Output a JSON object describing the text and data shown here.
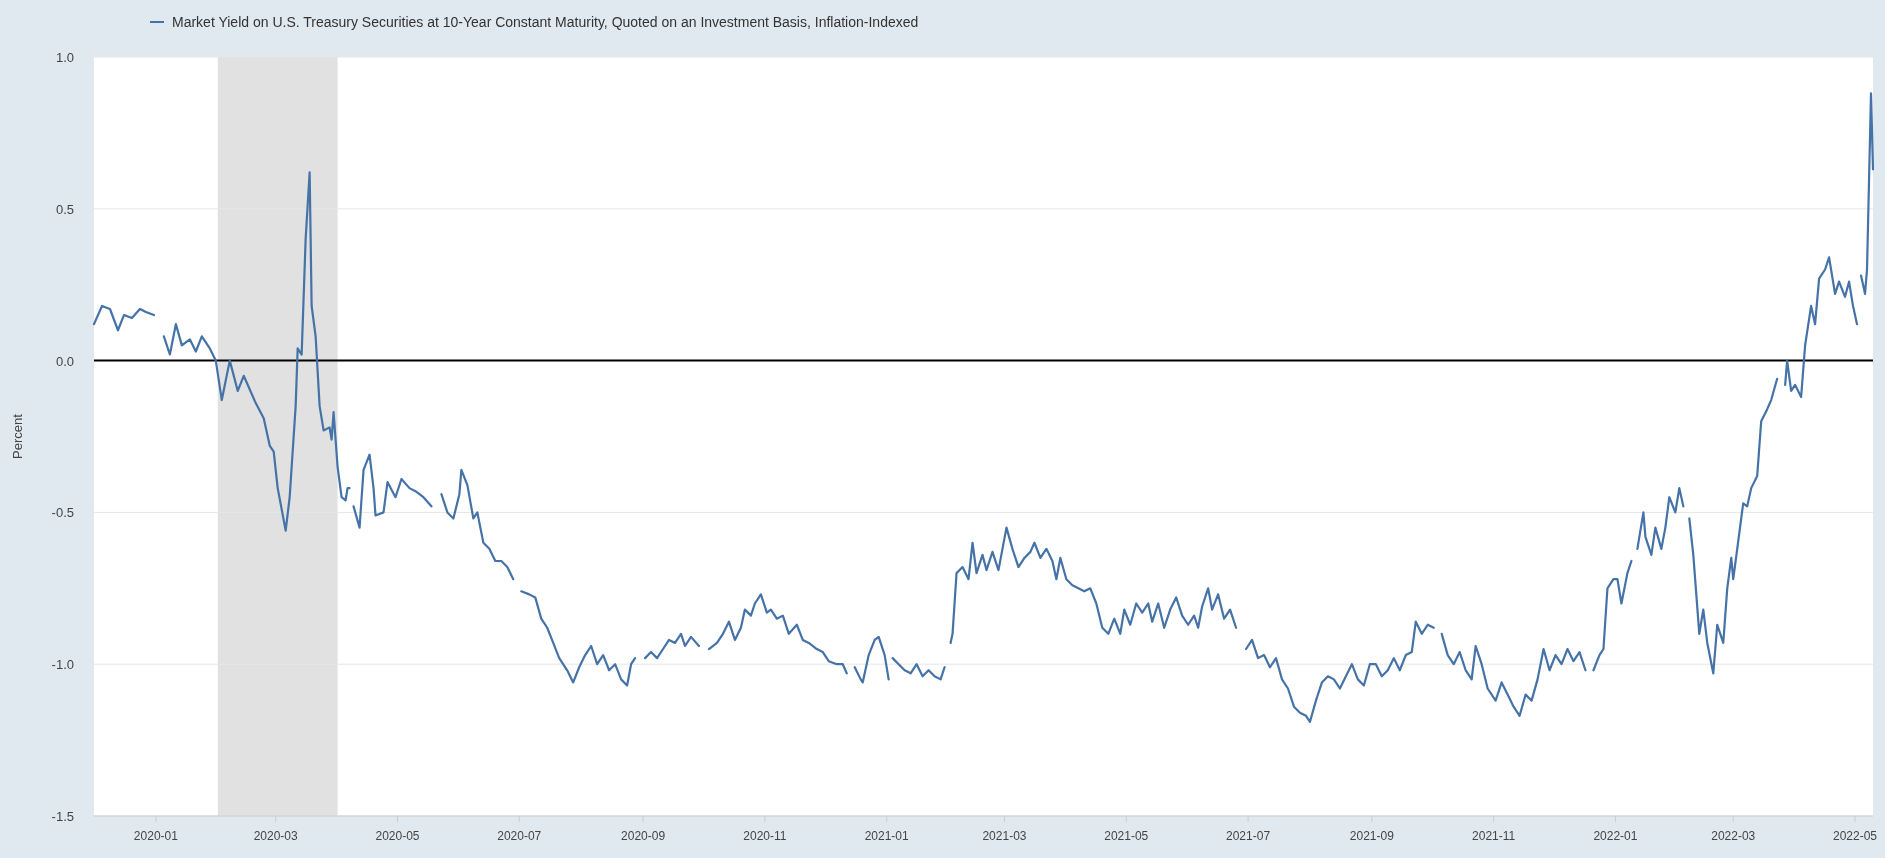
{
  "chart_data": {
    "type": "line",
    "ylabel": "Percent",
    "legend": "top left",
    "grid": "y",
    "marker": "none",
    "line_style": "solid",
    "xlim": [
      "2019-12-01",
      "2022-05-10"
    ],
    "xticks": [
      "2020-01",
      "2020-03",
      "2020-05",
      "2020-07",
      "2020-09",
      "2020-11",
      "2021-01",
      "2021-03",
      "2021-05",
      "2021-07",
      "2021-09",
      "2021-11",
      "2022-01",
      "2022-03",
      "2022-05"
    ],
    "ylim": [
      -1.5,
      1.0
    ],
    "yticks": [
      {
        "value": -1.5,
        "label": "-1.5"
      },
      {
        "value": -1.0,
        "label": "-1.0"
      },
      {
        "value": -0.5,
        "label": "-0.5"
      },
      {
        "value": 0,
        "label": "0.0"
      },
      {
        "value": 0.5,
        "label": "0.5"
      },
      {
        "value": 1.0,
        "label": "1.0"
      }
    ],
    "bands": [
      {
        "axis": "x",
        "from": "2020-02-01",
        "to": "2020-04-01",
        "color": "#e1e1e1"
      }
    ],
    "ref_lines": [
      {
        "axis": "y",
        "value": 0,
        "color": "#000000"
      }
    ],
    "x": [
      "2019-12-01",
      "2019-12-05",
      "2019-12-09",
      "2019-12-13",
      "2019-12-16",
      "2019-12-20",
      "2019-12-24",
      "2019-12-27",
      "2019-12-31",
      "2020-01-02",
      "2020-01-05",
      "2020-01-08",
      "2020-01-11",
      "2020-01-14",
      "2020-01-18",
      "2020-01-21",
      "2020-01-24",
      "2020-01-28",
      "2020-01-31",
      "2020-02-03",
      "2020-02-07",
      "2020-02-11",
      "2020-02-14",
      "2020-02-20",
      "2020-02-24",
      "2020-02-27",
      "2020-02-29",
      "2020-03-02",
      "2020-03-06",
      "2020-03-08",
      "2020-03-11",
      "2020-03-12",
      "2020-03-14",
      "2020-03-16",
      "2020-03-18",
      "2020-03-19",
      "2020-03-21",
      "2020-03-23",
      "2020-03-25",
      "2020-03-28",
      "2020-03-29",
      "2020-03-30",
      "2020-04-01",
      "2020-04-03",
      "2020-04-05",
      "2020-04-06",
      "2020-04-07",
      "2020-04-08",
      "2020-04-09",
      "2020-04-12",
      "2020-04-14",
      "2020-04-17",
      "2020-04-19",
      "2020-04-20",
      "2020-04-24",
      "2020-04-26",
      "2020-04-30",
      "2020-05-03",
      "2020-05-07",
      "2020-05-10",
      "2020-05-14",
      "2020-05-18",
      "2020-05-20",
      "2020-05-23",
      "2020-05-26",
      "2020-05-29",
      "2020-06-01",
      "2020-06-02",
      "2020-06-05",
      "2020-06-08",
      "2020-06-10",
      "2020-06-13",
      "2020-06-16",
      "2020-06-19",
      "2020-06-22",
      "2020-06-25",
      "2020-06-28",
      "2020-06-30",
      "2020-07-02",
      "2020-07-06",
      "2020-07-09",
      "2020-07-12",
      "2020-07-15",
      "2020-07-18",
      "2020-07-21",
      "2020-07-25",
      "2020-07-28",
      "2020-07-31",
      "2020-08-03",
      "2020-08-06",
      "2020-08-09",
      "2020-08-12",
      "2020-08-15",
      "2020-08-18",
      "2020-08-21",
      "2020-08-24",
      "2020-08-26",
      "2020-08-28",
      "2020-08-31",
      "2020-09-02",
      "2020-09-05",
      "2020-09-08",
      "2020-09-11",
      "2020-09-14",
      "2020-09-17",
      "2020-09-20",
      "2020-09-22",
      "2020-09-25",
      "2020-09-29",
      "2020-10-03",
      "2020-10-04",
      "2020-10-08",
      "2020-10-11",
      "2020-10-14",
      "2020-10-17",
      "2020-10-20",
      "2020-10-22",
      "2020-10-25",
      "2020-10-27",
      "2020-10-30",
      "2020-11-02",
      "2020-11-04",
      "2020-11-07",
      "2020-11-10",
      "2020-11-13",
      "2020-11-17",
      "2020-11-20",
      "2020-11-23",
      "2020-11-27",
      "2020-11-30",
      "2020-12-03",
      "2020-12-07",
      "2020-12-10",
      "2020-12-12",
      "2020-12-15",
      "2020-12-16",
      "2020-12-19",
      "2020-12-20",
      "2020-12-23",
      "2020-12-26",
      "2020-12-28",
      "2020-12-31",
      "2021-01-02",
      "2021-01-03",
      "2021-01-04",
      "2021-01-07",
      "2021-01-10",
      "2021-01-13",
      "2021-01-16",
      "2021-01-19",
      "2021-01-22",
      "2021-01-25",
      "2021-01-28",
      "2021-01-30",
      "2021-02-01",
      "2021-02-02",
      "2021-02-03",
      "2021-02-05",
      "2021-02-08",
      "2021-02-11",
      "2021-02-13",
      "2021-02-15",
      "2021-02-18",
      "2021-02-20",
      "2021-02-23",
      "2021-02-26",
      "2021-02-28",
      "2021-03-02",
      "2021-03-05",
      "2021-03-08",
      "2021-03-11",
      "2021-03-14",
      "2021-03-16",
      "2021-03-19",
      "2021-03-22",
      "2021-03-25",
      "2021-03-27",
      "2021-03-29",
      "2021-04-01",
      "2021-04-04",
      "2021-04-07",
      "2021-04-10",
      "2021-04-13",
      "2021-04-16",
      "2021-04-19",
      "2021-04-22",
      "2021-04-25",
      "2021-04-28",
      "2021-04-30",
      "2021-05-03",
      "2021-05-06",
      "2021-05-09",
      "2021-05-12",
      "2021-05-14",
      "2021-05-17",
      "2021-05-20",
      "2021-05-23",
      "2021-05-26",
      "2021-05-29",
      "2021-06-01",
      "2021-06-04",
      "2021-06-06",
      "2021-06-08",
      "2021-06-11",
      "2021-06-13",
      "2021-06-16",
      "2021-06-19",
      "2021-06-22",
      "2021-06-25",
      "2021-06-28",
      "2021-06-30",
      "2021-07-03",
      "2021-07-06",
      "2021-07-09",
      "2021-07-12",
      "2021-07-15",
      "2021-07-18",
      "2021-07-21",
      "2021-07-24",
      "2021-07-27",
      "2021-07-30",
      "2021-08-01",
      "2021-08-04",
      "2021-08-07",
      "2021-08-10",
      "2021-08-13",
      "2021-08-16",
      "2021-08-19",
      "2021-08-22",
      "2021-08-25",
      "2021-08-28",
      "2021-08-31",
      "2021-09-03",
      "2021-09-06",
      "2021-09-09",
      "2021-09-12",
      "2021-09-15",
      "2021-09-18",
      "2021-09-21",
      "2021-09-23",
      "2021-09-26",
      "2021-09-29",
      "2021-10-02",
      "2021-10-04",
      "2021-10-06",
      "2021-10-09",
      "2021-10-12",
      "2021-10-15",
      "2021-10-18",
      "2021-10-21",
      "2021-10-23",
      "2021-10-26",
      "2021-10-29",
      "2021-11-02",
      "2021-11-05",
      "2021-11-08",
      "2021-11-11",
      "2021-11-14",
      "2021-11-17",
      "2021-11-20",
      "2021-11-23",
      "2021-11-26",
      "2021-11-29",
      "2021-12-02",
      "2021-12-05",
      "2021-12-08",
      "2021-12-11",
      "2021-12-14",
      "2021-12-17",
      "2021-12-19",
      "2021-12-21",
      "2021-12-24",
      "2021-12-26",
      "2021-12-28",
      "2021-12-31",
      "2022-01-02",
      "2022-01-04",
      "2022-01-07",
      "2022-01-09",
      "2022-01-11",
      "2022-01-12",
      "2022-01-15",
      "2022-01-16",
      "2022-01-19",
      "2022-01-21",
      "2022-01-24",
      "2022-01-26",
      "2022-01-28",
      "2022-01-31",
      "2022-02-02",
      "2022-02-04",
      "2022-02-06",
      "2022-02-07",
      "2022-02-09",
      "2022-02-12",
      "2022-02-14",
      "2022-02-16",
      "2022-02-19",
      "2022-02-21",
      "2022-02-24",
      "2022-02-26",
      "2022-02-28",
      "2022-03-01",
      "2022-03-03",
      "2022-03-06",
      "2022-03-08",
      "2022-03-10",
      "2022-03-13",
      "2022-03-15",
      "2022-03-18",
      "2022-03-20",
      "2022-03-23",
      "2022-03-25",
      "2022-03-27",
      "2022-03-28",
      "2022-03-30",
      "2022-04-01",
      "2022-04-04",
      "2022-04-06",
      "2022-04-09",
      "2022-04-11",
      "2022-04-13",
      "2022-04-16",
      "2022-04-18",
      "2022-04-21",
      "2022-04-23",
      "2022-04-26",
      "2022-04-28",
      "2022-04-30",
      "2022-05-02",
      "2022-05-03",
      "2022-05-04",
      "2022-05-06",
      "2022-05-07",
      "2022-05-09",
      "2022-05-10"
    ],
    "series": [
      {
        "name": "Market Yield on U.S. Treasury Securities at 10-Year Constant Maturity, Quoted on an Investment Basis, Inflation-Indexed",
        "color": "#4572a7",
        "values": [
          0.12,
          0.18,
          0.17,
          0.1,
          0.15,
          0.14,
          0.17,
          0.16,
          0.15,
          null,
          0.08,
          0.02,
          0.12,
          0.05,
          0.07,
          0.03,
          0.08,
          0.04,
          0.0,
          -0.13,
          0.0,
          -0.1,
          -0.05,
          -0.14,
          -0.19,
          -0.28,
          -0.3,
          -0.42,
          -0.56,
          -0.45,
          -0.15,
          0.04,
          0.02,
          0.4,
          0.62,
          0.18,
          0.08,
          -0.15,
          -0.23,
          -0.22,
          -0.26,
          -0.17,
          -0.35,
          -0.45,
          -0.46,
          -0.42,
          -0.42,
          null,
          -0.48,
          -0.55,
          -0.36,
          -0.31,
          -0.42,
          -0.51,
          -0.5,
          -0.4,
          -0.45,
          -0.39,
          -0.42,
          -0.43,
          -0.45,
          -0.48,
          null,
          -0.44,
          -0.5,
          -0.52,
          -0.44,
          -0.36,
          -0.41,
          -0.52,
          -0.5,
          -0.6,
          -0.62,
          -0.66,
          -0.66,
          -0.68,
          -0.72,
          null,
          -0.76,
          -0.77,
          -0.78,
          -0.85,
          -0.88,
          -0.93,
          -0.98,
          -1.02,
          -1.06,
          -1.01,
          -0.97,
          -0.94,
          -1.0,
          -0.97,
          -1.02,
          -1.0,
          -1.05,
          -1.07,
          -1.0,
          -0.98,
          null,
          -0.98,
          -0.96,
          -0.98,
          -0.95,
          -0.92,
          -0.93,
          -0.9,
          -0.94,
          -0.91,
          -0.94,
          null,
          -0.95,
          -0.93,
          -0.9,
          -0.86,
          -0.92,
          -0.88,
          -0.82,
          -0.84,
          -0.8,
          -0.77,
          -0.83,
          -0.82,
          -0.85,
          -0.84,
          -0.9,
          -0.87,
          -0.92,
          -0.93,
          -0.95,
          -0.96,
          -0.99,
          -1.0,
          -1.0,
          -1.03,
          null,
          -1.01,
          -1.05,
          -1.06,
          -0.97,
          -0.92,
          -0.91,
          -0.97,
          -1.05,
          null,
          -0.98,
          -1.0,
          -1.02,
          -1.03,
          -1.0,
          -1.04,
          -1.02,
          -1.04,
          -1.05,
          -1.01,
          null,
          -0.93,
          -0.9,
          -0.7,
          -0.68,
          -0.72,
          -0.6,
          -0.7,
          -0.64,
          -0.69,
          -0.63,
          -0.69,
          -0.62,
          -0.55,
          -0.62,
          -0.68,
          -0.65,
          -0.63,
          -0.6,
          -0.65,
          -0.62,
          -0.66,
          -0.72,
          -0.65,
          -0.72,
          -0.74,
          -0.75,
          -0.76,
          -0.75,
          -0.8,
          -0.88,
          -0.9,
          -0.85,
          -0.9,
          -0.82,
          -0.87,
          -0.8,
          -0.83,
          -0.8,
          -0.86,
          -0.8,
          -0.88,
          -0.82,
          -0.78,
          -0.84,
          -0.87,
          -0.84,
          -0.88,
          -0.81,
          -0.75,
          -0.82,
          -0.77,
          -0.85,
          -0.82,
          -0.88,
          null,
          -0.95,
          -0.92,
          -0.98,
          -0.97,
          -1.01,
          -0.98,
          -1.05,
          -1.08,
          -1.14,
          -1.16,
          -1.17,
          -1.19,
          -1.12,
          -1.06,
          -1.04,
          -1.05,
          -1.08,
          -1.04,
          -1.0,
          -1.05,
          -1.07,
          -1.0,
          -1.0,
          -1.04,
          -1.02,
          -0.98,
          -1.02,
          -0.97,
          -0.96,
          -0.86,
          -0.9,
          -0.87,
          -0.88,
          null,
          -0.9,
          -0.97,
          -1.0,
          -0.96,
          -1.02,
          -1.05,
          -0.94,
          -1.0,
          -1.08,
          -1.12,
          -1.06,
          -1.1,
          -1.14,
          -1.17,
          -1.1,
          -1.12,
          -1.05,
          -0.95,
          -1.02,
          -0.97,
          -1.0,
          -0.95,
          -0.99,
          -0.96,
          -1.02,
          null,
          -1.02,
          -0.97,
          -0.95,
          -0.75,
          -0.72,
          -0.72,
          -0.8,
          -0.7,
          -0.66,
          null,
          -0.62,
          -0.5,
          -0.58,
          -0.64,
          -0.55,
          -0.62,
          -0.55,
          -0.45,
          -0.5,
          -0.42,
          -0.48,
          null,
          -0.52,
          -0.64,
          -0.9,
          -0.82,
          -0.93,
          -1.03,
          -0.87,
          -0.93,
          -0.75,
          -0.65,
          -0.72,
          -0.62,
          -0.47,
          -0.48,
          -0.42,
          -0.38,
          -0.2,
          -0.16,
          -0.13,
          -0.06,
          null,
          -0.08,
          0.0,
          -0.1,
          -0.08,
          -0.12,
          0.05,
          0.18,
          0.12,
          0.27,
          0.3,
          0.34,
          0.22,
          0.26,
          0.21,
          0.26,
          0.18,
          0.12,
          null,
          0.28,
          0.22,
          0.3,
          0.88,
          0.63
        ]
      }
    ]
  }
}
